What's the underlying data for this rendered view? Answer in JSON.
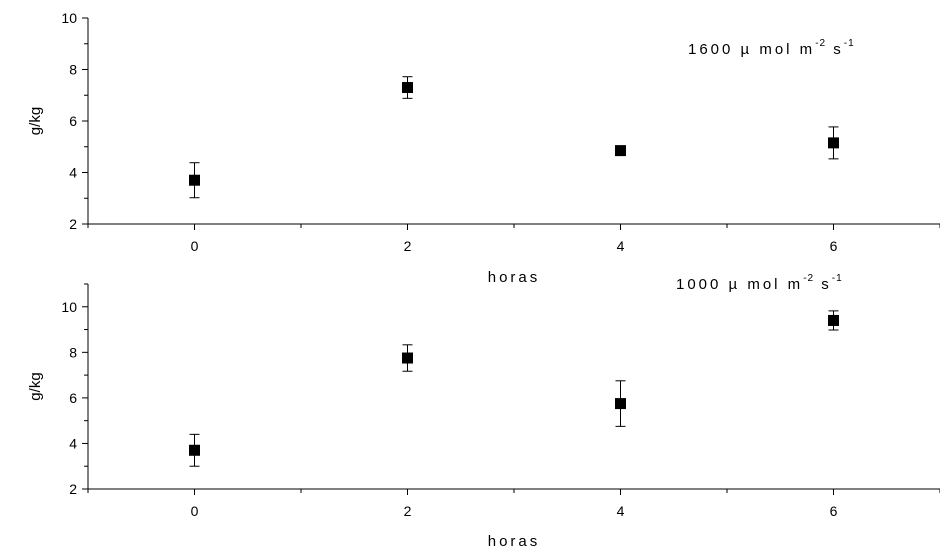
{
  "chart_data": [
    {
      "type": "scatter",
      "annotation": {
        "prefix": "1600 µ mol m",
        "exp1": "-2",
        "mid": " s",
        "exp2": "-1"
      },
      "xlabel": "horas",
      "ylabel": "g/kg",
      "xlim": [
        -1,
        7
      ],
      "ylim": [
        2,
        10
      ],
      "xticks": [
        0,
        2,
        4,
        6
      ],
      "yticks": [
        2,
        4,
        6,
        8,
        10
      ],
      "grid": false,
      "x": [
        0,
        2,
        4,
        6
      ],
      "y": [
        3.7,
        7.3,
        4.85,
        5.15
      ],
      "error": [
        0.68,
        0.42,
        0.08,
        0.62
      ],
      "marker": "filled-square",
      "color": "#000000"
    },
    {
      "type": "scatter",
      "annotation": {
        "prefix": "1000 µ mol m",
        "exp1": "-2",
        "mid": " s",
        "exp2": "-1"
      },
      "xlabel": "horas",
      "ylabel": "g/kg",
      "xlim": [
        -1,
        7
      ],
      "ylim": [
        2,
        11
      ],
      "xticks": [
        0,
        2,
        4,
        6
      ],
      "yticks": [
        2,
        4,
        6,
        8,
        10
      ],
      "grid": false,
      "x": [
        0,
        2,
        4,
        6
      ],
      "y": [
        3.7,
        7.75,
        5.75,
        9.4
      ],
      "error": [
        0.7,
        0.58,
        1.0,
        0.42
      ],
      "marker": "filled-square",
      "color": "#000000"
    }
  ]
}
